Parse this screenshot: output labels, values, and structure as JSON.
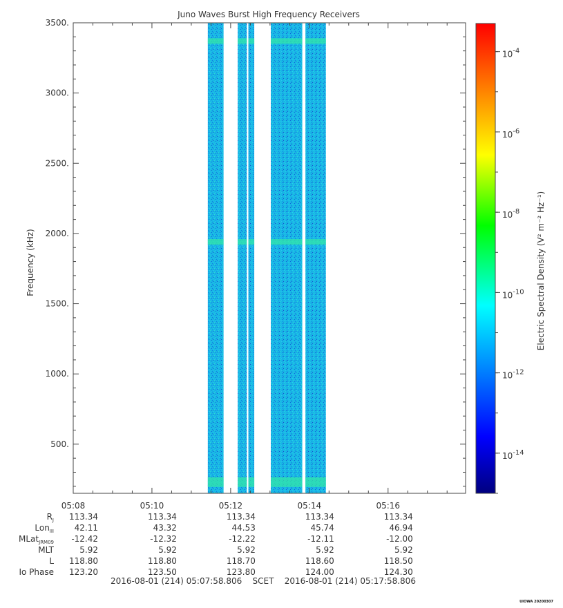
{
  "chart_data": {
    "type": "heatmap",
    "title": "Juno Waves Burst High Frequency Receivers",
    "ylabel": "Frequency (kHz)",
    "xlabel": "",
    "ylim": [
      150,
      3500
    ],
    "y_ticks": [
      "500.",
      "1000.",
      "1500.",
      "2000.",
      "2500.",
      "3000.",
      "3500."
    ],
    "y_tick_values": [
      500,
      1000,
      1500,
      2000,
      2500,
      3000,
      3500
    ],
    "xlim": [
      "05:08",
      "05:17:58"
    ],
    "x_ticks": [
      "05:08",
      "05:10",
      "05:12",
      "05:14",
      "05:16"
    ],
    "x_tick_minutes": [
      0,
      2,
      4,
      6,
      8
    ],
    "x_span_minutes": 9.97,
    "data_intervals_minutes": [
      [
        3.42,
        3.82
      ],
      [
        4.18,
        4.41
      ],
      [
        4.45,
        4.6
      ],
      [
        5.02,
        5.82
      ],
      [
        5.9,
        6.42
      ]
    ],
    "emission_bands_khz": [
      230,
      1940,
      3370
    ],
    "colorbar": {
      "label": "Electric Spectral Density (V² m⁻² Hz⁻¹)",
      "ticks": [
        "10",
        "10",
        "10",
        "10",
        "10",
        "10"
      ],
      "tick_exponents": [
        "-4",
        "-6",
        "-8",
        "-10",
        "-12",
        "-14"
      ],
      "scale": "log",
      "range": [
        -15,
        -3.3
      ],
      "colors": [
        "#00007f",
        "#0000ff",
        "#0080ff",
        "#00ffff",
        "#00ff00",
        "#ffff00",
        "#ff8000",
        "#ff0000"
      ]
    },
    "background_level": "10^-12",
    "grid": false
  },
  "ephemeris": {
    "rows": [
      {
        "label": "R",
        "sub": "J",
        "values": [
          "113.34",
          "113.34",
          "113.34",
          "113.34",
          "113.34"
        ]
      },
      {
        "label": "Lon",
        "sub": "III",
        "values": [
          "42.11",
          "43.32",
          "44.53",
          "45.74",
          "46.94"
        ]
      },
      {
        "label": "MLat",
        "sub": "JRM09",
        "values": [
          "-12.42",
          "-12.32",
          "-12.22",
          "-12.11",
          "-12.00"
        ]
      },
      {
        "label": "MLT",
        "sub": "",
        "values": [
          "5.92",
          "5.92",
          "5.92",
          "5.92",
          "5.92"
        ]
      },
      {
        "label": "L",
        "sub": "",
        "values": [
          "118.80",
          "118.80",
          "118.70",
          "118.60",
          "118.50"
        ]
      },
      {
        "label": "Io Phase",
        "sub": "",
        "values": [
          "123.20",
          "123.50",
          "123.80",
          "124.00",
          "124.30"
        ]
      }
    ]
  },
  "footer": {
    "start": "2016-08-01 (214) 05:07:58.806",
    "label": "SCET",
    "end": "2016-08-01 (214) 05:17:58.806"
  },
  "stamp": "UIOWA 20200307"
}
